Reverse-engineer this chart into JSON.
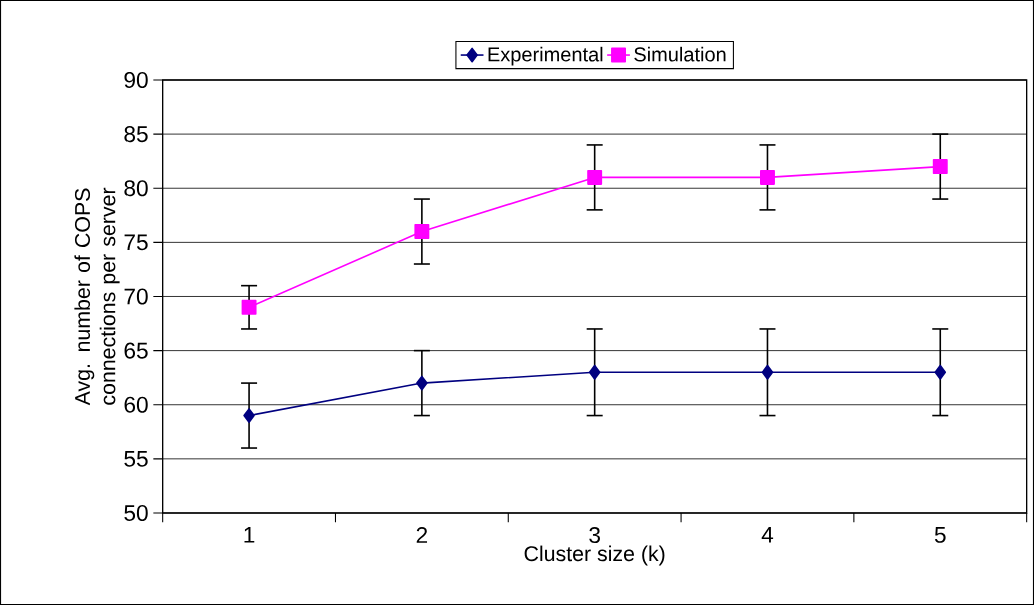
{
  "chart_data": {
    "type": "line",
    "xlabel": "Cluster size (k)",
    "ylabel": "Avg. number of COPS connections per server",
    "categories": [
      "1",
      "2",
      "3",
      "4",
      "5"
    ],
    "series": [
      {
        "name": "Experimental",
        "color": "#000080",
        "marker": "diamond",
        "values": [
          59,
          62,
          63,
          63,
          63
        ],
        "errors": [
          3,
          3,
          4,
          4,
          4
        ]
      },
      {
        "name": "Simulation",
        "color": "#ff00ff",
        "marker": "square",
        "values": [
          69,
          76,
          81,
          81,
          82
        ],
        "errors": [
          2,
          3,
          3,
          3,
          3
        ]
      }
    ],
    "ylim": [
      50,
      90
    ],
    "yticks": [
      50,
      55,
      60,
      65,
      70,
      75,
      80,
      85,
      90
    ],
    "grid": "y",
    "legend": "top"
  }
}
